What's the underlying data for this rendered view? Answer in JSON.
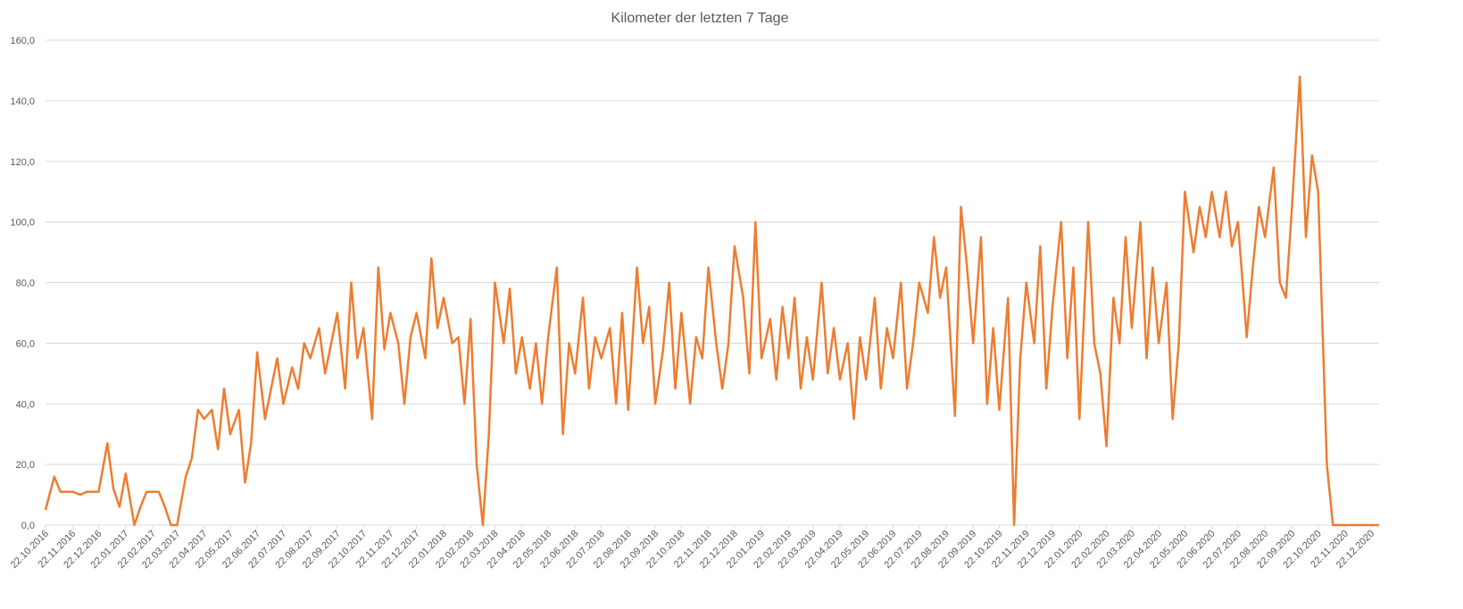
{
  "chart_data": {
    "type": "line",
    "title": "Kilometer der letzten 7 Tage",
    "xlim": [
      "22.10.2016",
      "31.12.2020"
    ],
    "xticks": [
      "22.10.2016",
      "22.11.2016",
      "22.12.2016",
      "22.01.2017",
      "22.02.2017",
      "22.03.2017",
      "22.04.2017",
      "22.05.2017",
      "22.06.2017",
      "22.07.2017",
      "22.08.2017",
      "22.09.2017",
      "22.10.2017",
      "22.11.2017",
      "22.12.2017",
      "22.01.2018",
      "22.02.2018",
      "22.03.2018",
      "22.04.2018",
      "22.05.2018",
      "22.06.2018",
      "22.07.2018",
      "22.08.2018",
      "22.09.2018",
      "22.10.2018",
      "22.11.2018",
      "22.12.2018",
      "22.01.2019",
      "22.02.2019",
      "22.03.2019",
      "22.04.2019",
      "22.05.2019",
      "22.06.2019",
      "22.07.2019",
      "22.08.2019",
      "22.09.2019",
      "22.10.2019",
      "22.11.2019",
      "22.12.2019",
      "22.01.2020",
      "22.02.2020",
      "22.03.2020",
      "22.04.2020",
      "22.05.2020",
      "22.06.2020",
      "22.07.2020",
      "22.08.2020",
      "22.09.2020",
      "22.10.2020",
      "22.11.2020",
      "22.12.2020"
    ],
    "ylim": [
      0,
      160
    ],
    "yticks": [
      {
        "value": 0,
        "label": "0,0"
      },
      {
        "value": 20,
        "label": "20,0"
      },
      {
        "value": 40,
        "label": "40,0"
      },
      {
        "value": 60,
        "label": "60,0"
      },
      {
        "value": 80,
        "label": "80,0"
      },
      {
        "value": 100,
        "label": "100,0"
      },
      {
        "value": 120,
        "label": "120,0"
      },
      {
        "value": 140,
        "label": "140,0"
      },
      {
        "value": 160,
        "label": "160,0"
      }
    ],
    "grid": true,
    "series": [
      {
        "color": "#ed7d31",
        "x": [
          "22.10.2016",
          "01.11.2016",
          "08.11.2016",
          "15.11.2016",
          "22.11.2016",
          "01.12.2016",
          "08.12.2016",
          "15.12.2016",
          "22.12.2016",
          "01.01.2017",
          "08.01.2017",
          "15.01.2017",
          "22.01.2017",
          "01.02.2017",
          "08.02.2017",
          "15.02.2017",
          "22.02.2017",
          "01.03.2017",
          "08.03.2017",
          "15.03.2017",
          "22.03.2017",
          "01.04.2017",
          "08.04.2017",
          "15.04.2017",
          "22.04.2017",
          "01.05.2017",
          "08.05.2017",
          "15.05.2017",
          "22.05.2017",
          "01.06.2017",
          "08.06.2017",
          "15.06.2017",
          "22.06.2017",
          "01.07.2017",
          "08.07.2017",
          "15.07.2017",
          "22.07.2017",
          "01.08.2017",
          "08.08.2017",
          "15.08.2017",
          "22.08.2017",
          "01.09.2017",
          "08.09.2017",
          "15.09.2017",
          "22.09.2017",
          "01.10.2017",
          "08.10.2017",
          "15.10.2017",
          "22.10.2017",
          "01.11.2017",
          "08.11.2017",
          "15.11.2017",
          "22.11.2017",
          "01.12.2017",
          "08.12.2017",
          "15.12.2017",
          "22.12.2017",
          "01.01.2018",
          "08.01.2018",
          "15.01.2018",
          "22.01.2018",
          "01.02.2018",
          "08.02.2018",
          "15.02.2018",
          "22.02.2018",
          "01.03.2018",
          "08.03.2018",
          "15.03.2018",
          "22.03.2018",
          "01.04.2018",
          "08.04.2018",
          "15.04.2018",
          "22.04.2018",
          "01.05.2018",
          "08.05.2018",
          "15.05.2018",
          "22.05.2018",
          "01.06.2018",
          "08.06.2018",
          "15.06.2018",
          "22.06.2018",
          "01.07.2018",
          "08.07.2018",
          "15.07.2018",
          "22.07.2018",
          "01.08.2018",
          "08.08.2018",
          "15.08.2018",
          "22.08.2018",
          "01.09.2018",
          "08.09.2018",
          "15.09.2018",
          "22.09.2018",
          "01.10.2018",
          "08.10.2018",
          "15.10.2018",
          "22.10.2018",
          "01.11.2018",
          "08.11.2018",
          "15.11.2018",
          "22.11.2018",
          "01.12.2018",
          "08.12.2018",
          "15.12.2018",
          "22.12.2018",
          "01.01.2019",
          "08.01.2019",
          "15.01.2019",
          "22.01.2019",
          "01.02.2019",
          "08.02.2019",
          "15.02.2019",
          "22.02.2019",
          "01.03.2019",
          "08.03.2019",
          "15.03.2019",
          "22.03.2019",
          "01.04.2019",
          "08.04.2019",
          "15.04.2019",
          "22.04.2019",
          "01.05.2019",
          "08.05.2019",
          "15.05.2019",
          "22.05.2019",
          "01.06.2019",
          "08.06.2019",
          "15.06.2019",
          "22.06.2019",
          "01.07.2019",
          "08.07.2019",
          "15.07.2019",
          "22.07.2019",
          "01.08.2019",
          "08.08.2019",
          "15.08.2019",
          "22.08.2019",
          "01.09.2019",
          "08.09.2019",
          "15.09.2019",
          "22.09.2019",
          "01.10.2019",
          "08.10.2019",
          "15.10.2019",
          "22.10.2019",
          "01.11.2019",
          "08.11.2019",
          "15.11.2019",
          "22.11.2019",
          "01.12.2019",
          "08.12.2019",
          "15.12.2019",
          "22.12.2019",
          "01.01.2020",
          "08.01.2020",
          "15.01.2020",
          "22.01.2020",
          "01.02.2020",
          "08.02.2020",
          "15.02.2020",
          "22.02.2020",
          "01.03.2020",
          "08.03.2020",
          "15.03.2020",
          "22.03.2020",
          "01.04.2020",
          "08.04.2020",
          "15.04.2020",
          "22.04.2020",
          "01.05.2020",
          "08.05.2020",
          "15.05.2020",
          "22.05.2020",
          "01.06.2020",
          "08.06.2020",
          "15.06.2020",
          "22.06.2020",
          "01.07.2020",
          "08.07.2020",
          "15.07.2020",
          "22.07.2020",
          "01.08.2020",
          "08.08.2020",
          "15.08.2020",
          "22.08.2020",
          "01.09.2020",
          "08.09.2020",
          "15.09.2020",
          "22.09.2020",
          "01.10.2020",
          "08.10.2020",
          "15.10.2020",
          "22.10.2020",
          "01.11.2020",
          "08.11.2020",
          "15.11.2020",
          "22.11.2020",
          "01.12.2020",
          "15.12.2020",
          "31.12.2020"
        ],
        "values": [
          5,
          16,
          11,
          11,
          11,
          10,
          11,
          11,
          11,
          27,
          12,
          6,
          17,
          0,
          6,
          11,
          11,
          11,
          6,
          0,
          0,
          16,
          22,
          38,
          35,
          38,
          25,
          45,
          30,
          38,
          14,
          27,
          57,
          35,
          45,
          55,
          40,
          52,
          45,
          60,
          55,
          65,
          50,
          60,
          70,
          45,
          80,
          55,
          65,
          35,
          85,
          58,
          70,
          60,
          40,
          62,
          70,
          55,
          88,
          65,
          75,
          60,
          62,
          40,
          68,
          20,
          0,
          30,
          80,
          60,
          78,
          50,
          62,
          45,
          60,
          40,
          62,
          85,
          30,
          60,
          50,
          75,
          45,
          62,
          55,
          65,
          40,
          70,
          38,
          85,
          60,
          72,
          40,
          58,
          80,
          45,
          70,
          40,
          62,
          55,
          85,
          60,
          45,
          60,
          92,
          75,
          50,
          100,
          55,
          68,
          48,
          72,
          55,
          75,
          45,
          62,
          48,
          80,
          50,
          65,
          48,
          60,
          35,
          62,
          48,
          75,
          45,
          65,
          55,
          80,
          45,
          60,
          80,
          70,
          95,
          75,
          85,
          36,
          105,
          85,
          60,
          95,
          40,
          65,
          38,
          75,
          0,
          55,
          80,
          60,
          92,
          45,
          72,
          100,
          55,
          85,
          35,
          100,
          60,
          50,
          26,
          75,
          60,
          95,
          65,
          100,
          55,
          85,
          60,
          80,
          35,
          60,
          110,
          90,
          105,
          95,
          110,
          95,
          110,
          92,
          100,
          62,
          85,
          105,
          95,
          118,
          80,
          75,
          105,
          148,
          95,
          122,
          110,
          20,
          0,
          0,
          0,
          0,
          0,
          0
        ]
      }
    ]
  }
}
